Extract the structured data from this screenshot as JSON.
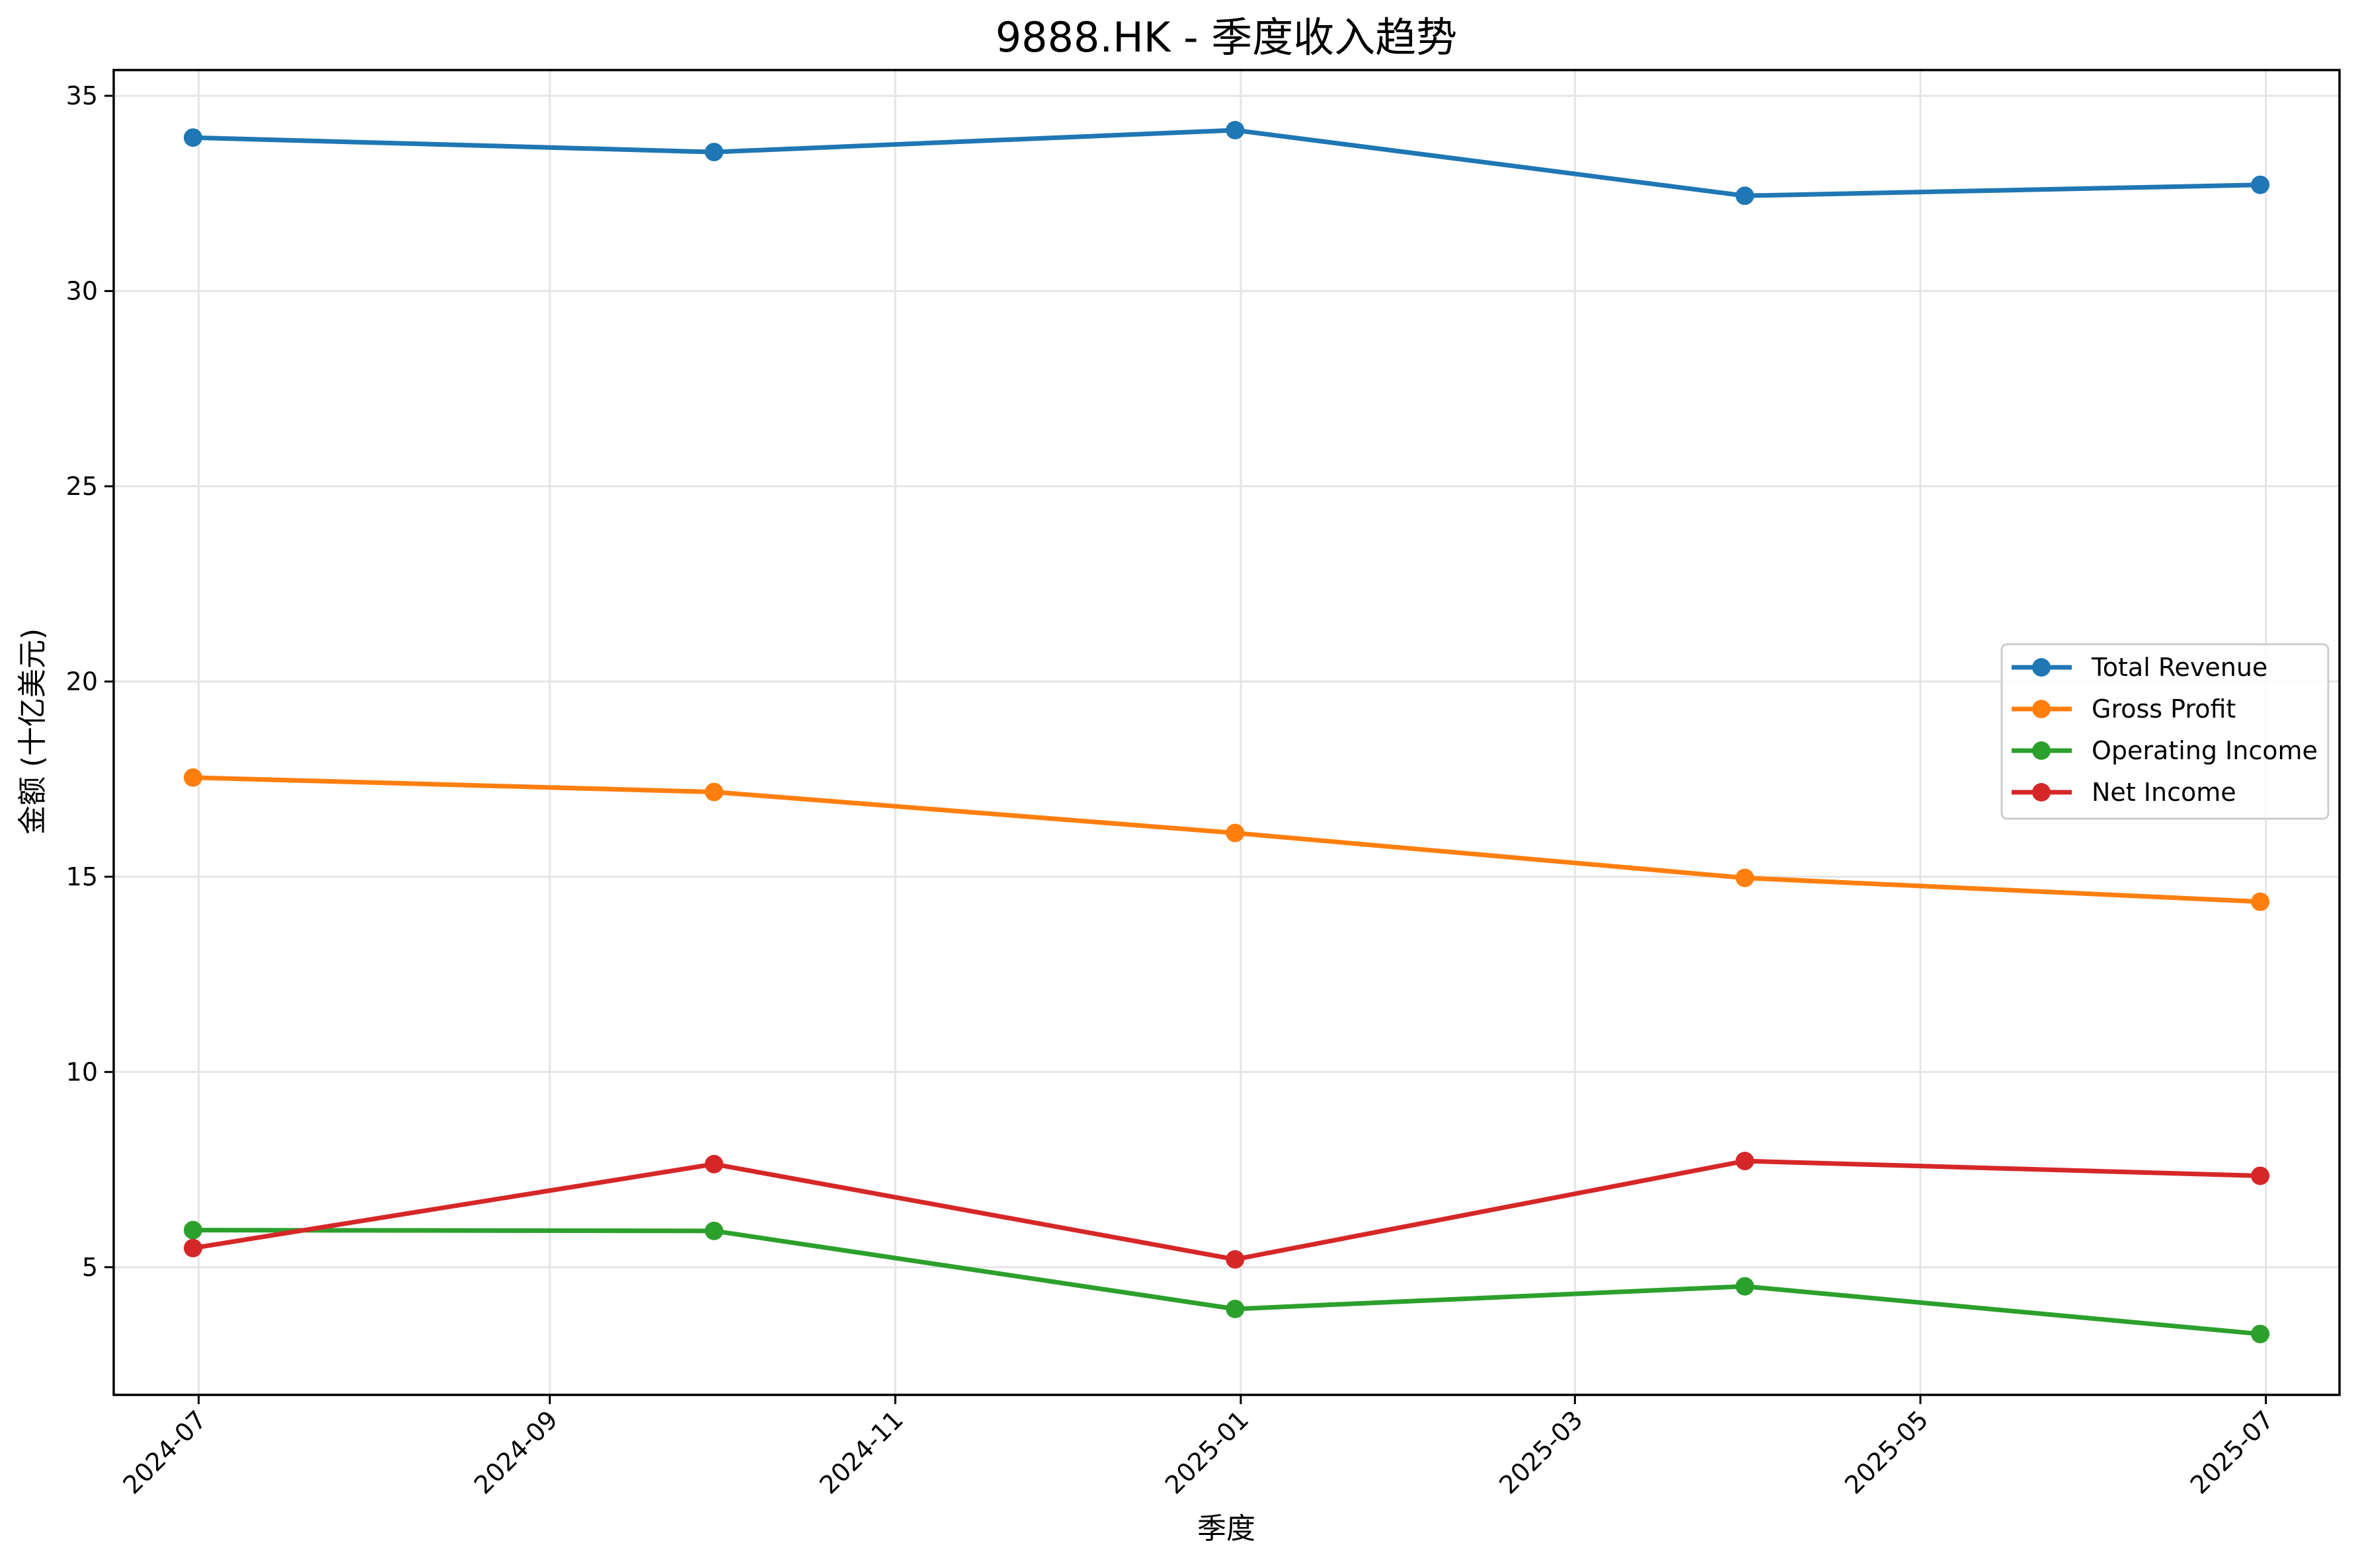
{
  "chart_data": {
    "type": "line",
    "title": "9888.HK - 季度收入趋势",
    "xlabel": "季度",
    "ylabel": "金额 (十亿美元)",
    "x": [
      "2024-06-30",
      "2024-09-30",
      "2024-12-31",
      "2025-03-31",
      "2025-06-30"
    ],
    "series": [
      {
        "name": "Total Revenue",
        "color": "#1f77b4",
        "values": [
          33.93,
          33.56,
          34.12,
          32.44,
          32.72
        ]
      },
      {
        "name": "Gross Profit",
        "color": "#ff7f0e",
        "values": [
          17.54,
          17.17,
          16.12,
          14.97,
          14.36
        ]
      },
      {
        "name": "Operating Income",
        "color": "#2ca02c",
        "values": [
          5.95,
          5.93,
          3.93,
          4.51,
          3.29
        ]
      },
      {
        "name": "Net Income",
        "color": "#d62728",
        "values": [
          5.49,
          7.64,
          5.2,
          7.72,
          7.34
        ]
      }
    ],
    "yticks": [
      5,
      10,
      15,
      20,
      25,
      30,
      35
    ],
    "xticks": [
      "2024-07",
      "2024-09",
      "2024-11",
      "2025-01",
      "2025-03",
      "2025-05",
      "2025-07"
    ],
    "ylim": [
      1.73,
      35.66
    ],
    "xlim": [
      "2024-06-16",
      "2025-07-14"
    ],
    "grid": true,
    "legend_position": "center right",
    "marker": "circle"
  }
}
